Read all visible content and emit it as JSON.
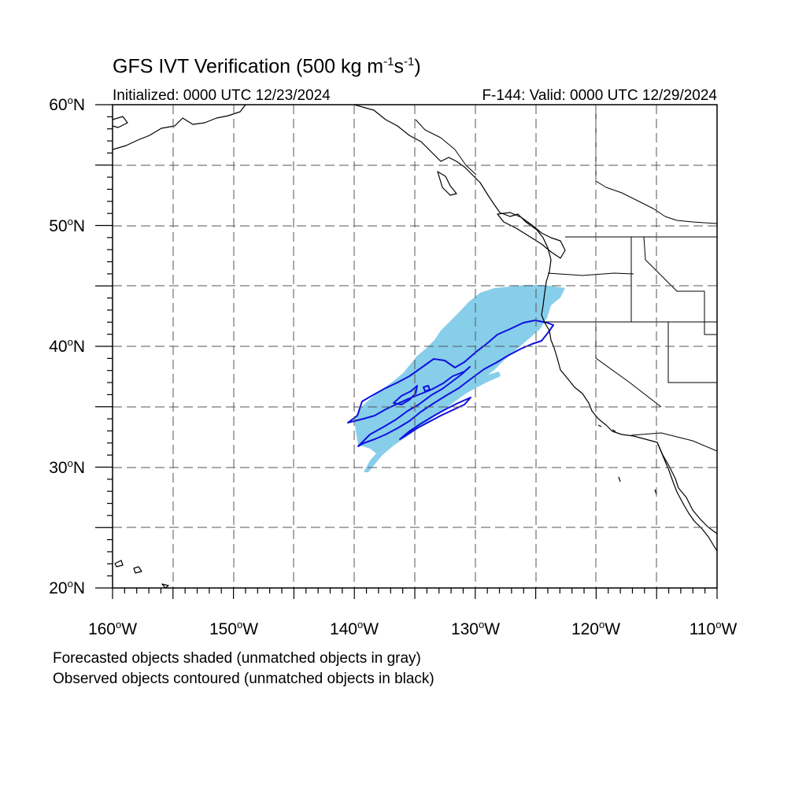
{
  "title": {
    "main": "GFS IVT Verification (500 kg m",
    "unit_exp1": "-1",
    "unit_mid": "s",
    "unit_exp2": "-1",
    "unit_close": ")"
  },
  "initialized": "Initialized: 0000 UTC 12/23/2024",
  "valid": "F-144: Valid: 0000 UTC 12/29/2024",
  "lat_labels": [
    {
      "num": "60",
      "deg": "o",
      "hem": "N"
    },
    {
      "num": "50",
      "deg": "o",
      "hem": "N"
    },
    {
      "num": "40",
      "deg": "o",
      "hem": "N"
    },
    {
      "num": "30",
      "deg": "o",
      "hem": "N"
    },
    {
      "num": "20",
      "deg": "o",
      "hem": "N"
    }
  ],
  "lon_labels": [
    {
      "num": "160",
      "deg": "o",
      "hem": "W"
    },
    {
      "num": "150",
      "deg": "o",
      "hem": "W"
    },
    {
      "num": "140",
      "deg": "o",
      "hem": "W"
    },
    {
      "num": "130",
      "deg": "o",
      "hem": "W"
    },
    {
      "num": "120",
      "deg": "o",
      "hem": "W"
    },
    {
      "num": "110",
      "deg": "o",
      "hem": "W"
    }
  ],
  "notes": {
    "line1": "Forecasted objects shaded (unmatched objects in gray)",
    "line2": "Observed objects contoured (unmatched objects in black)"
  },
  "map": {
    "lon_range": [
      -160,
      -110
    ],
    "lat_range": [
      20,
      60
    ],
    "grid_spacing_deg": 5,
    "colors": {
      "forecast_fill": "#87ceeb",
      "observed_contour": "#1010e0",
      "coastline": "#000000",
      "grid": "#555555"
    }
  }
}
